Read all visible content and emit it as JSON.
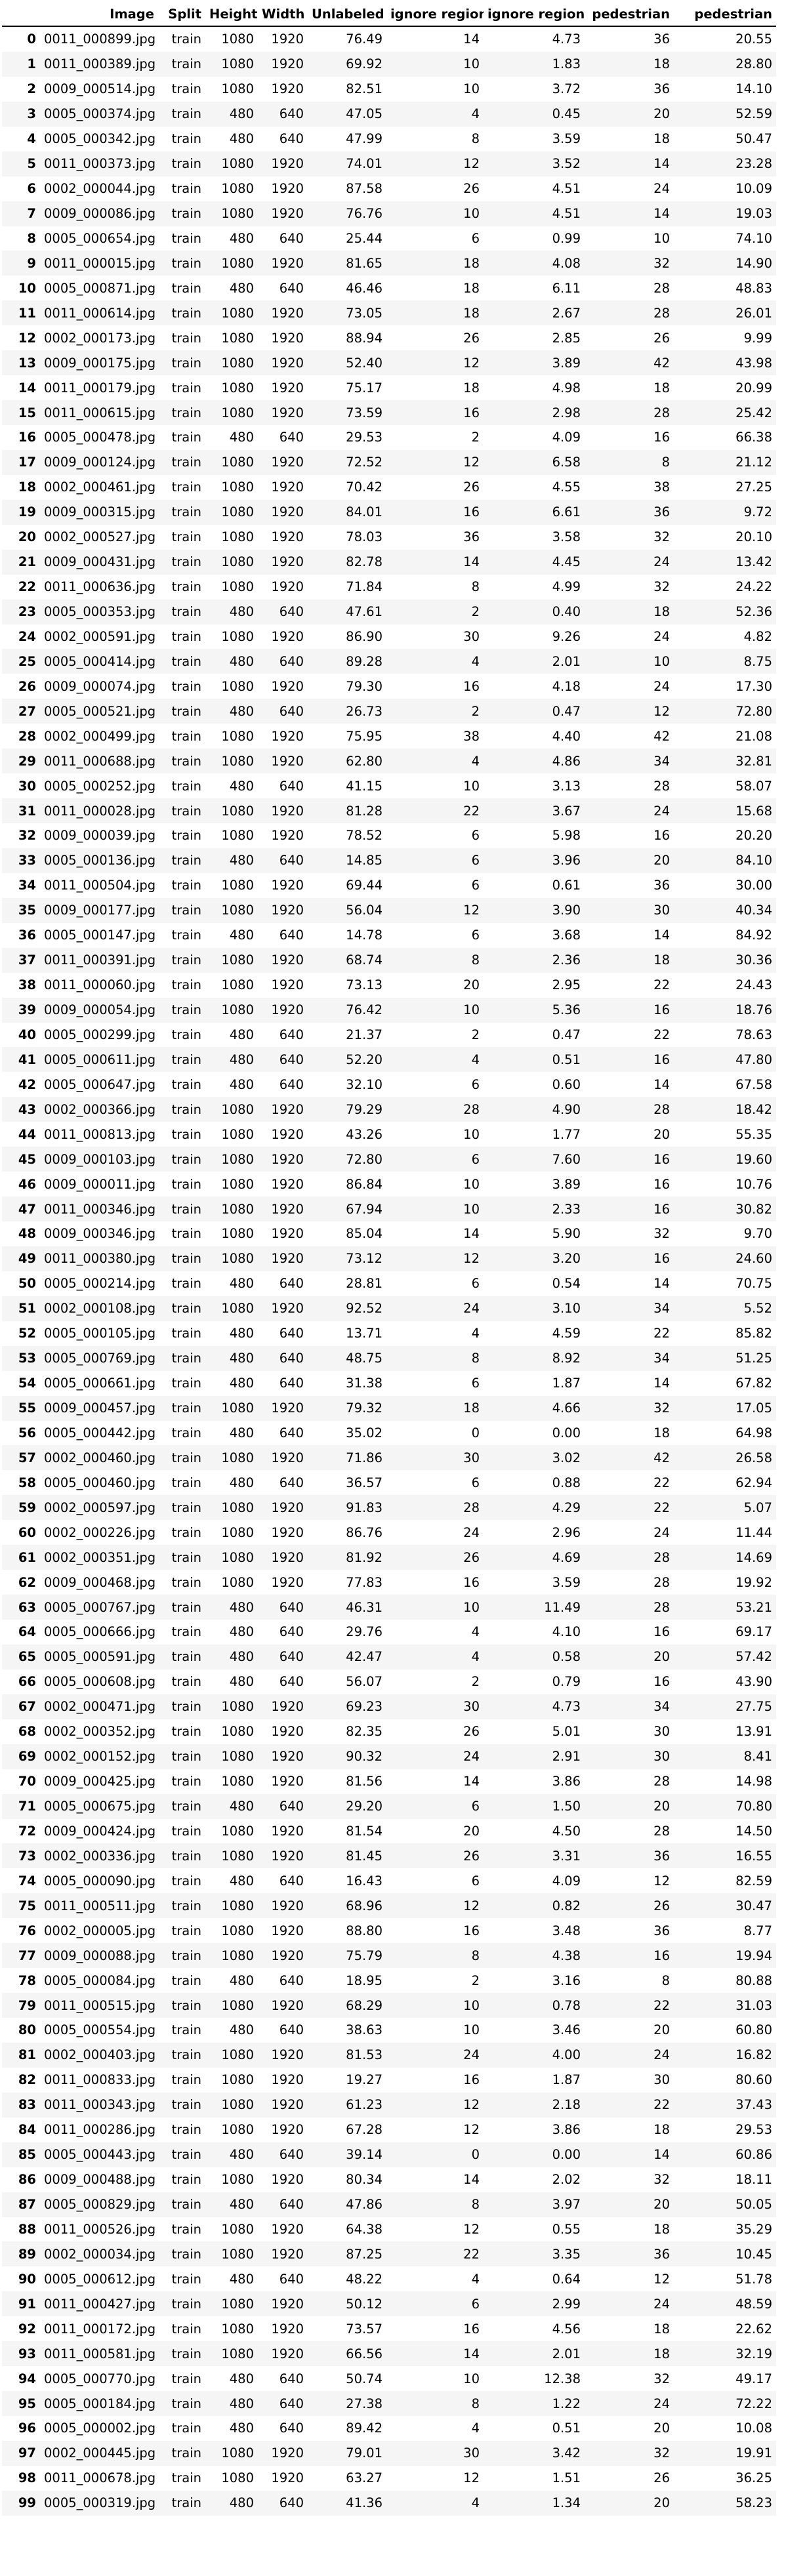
{
  "table": {
    "columns": [
      "",
      "Image",
      "Split",
      "Height",
      "Width",
      "Unlabeled",
      "ignore region",
      "ignore region",
      "pedestrian",
      "pedestrian"
    ],
    "rows": [
      [
        "0",
        "0011_000899.jpg",
        "train",
        "1080",
        "1920",
        "76.49",
        "14",
        "4.73",
        "36",
        "20.55"
      ],
      [
        "1",
        "0011_000389.jpg",
        "train",
        "1080",
        "1920",
        "69.92",
        "10",
        "1.83",
        "18",
        "28.80"
      ],
      [
        "2",
        "0009_000514.jpg",
        "train",
        "1080",
        "1920",
        "82.51",
        "10",
        "3.72",
        "36",
        "14.10"
      ],
      [
        "3",
        "0005_000374.jpg",
        "train",
        "480",
        "640",
        "47.05",
        "4",
        "0.45",
        "20",
        "52.59"
      ],
      [
        "4",
        "0005_000342.jpg",
        "train",
        "480",
        "640",
        "47.99",
        "8",
        "3.59",
        "18",
        "50.47"
      ],
      [
        "5",
        "0011_000373.jpg",
        "train",
        "1080",
        "1920",
        "74.01",
        "12",
        "3.52",
        "14",
        "23.28"
      ],
      [
        "6",
        "0002_000044.jpg",
        "train",
        "1080",
        "1920",
        "87.58",
        "26",
        "4.51",
        "24",
        "10.09"
      ],
      [
        "7",
        "0009_000086.jpg",
        "train",
        "1080",
        "1920",
        "76.76",
        "10",
        "4.51",
        "14",
        "19.03"
      ],
      [
        "8",
        "0005_000654.jpg",
        "train",
        "480",
        "640",
        "25.44",
        "6",
        "0.99",
        "10",
        "74.10"
      ],
      [
        "9",
        "0011_000015.jpg",
        "train",
        "1080",
        "1920",
        "81.65",
        "18",
        "4.08",
        "32",
        "14.90"
      ],
      [
        "10",
        "0005_000871.jpg",
        "train",
        "480",
        "640",
        "46.46",
        "18",
        "6.11",
        "28",
        "48.83"
      ],
      [
        "11",
        "0011_000614.jpg",
        "train",
        "1080",
        "1920",
        "73.05",
        "18",
        "2.67",
        "28",
        "26.01"
      ],
      [
        "12",
        "0002_000173.jpg",
        "train",
        "1080",
        "1920",
        "88.94",
        "26",
        "2.85",
        "26",
        "9.99"
      ],
      [
        "13",
        "0009_000175.jpg",
        "train",
        "1080",
        "1920",
        "52.40",
        "12",
        "3.89",
        "42",
        "43.98"
      ],
      [
        "14",
        "0011_000179.jpg",
        "train",
        "1080",
        "1920",
        "75.17",
        "18",
        "4.98",
        "18",
        "20.99"
      ],
      [
        "15",
        "0011_000615.jpg",
        "train",
        "1080",
        "1920",
        "73.59",
        "16",
        "2.98",
        "28",
        "25.42"
      ],
      [
        "16",
        "0005_000478.jpg",
        "train",
        "480",
        "640",
        "29.53",
        "2",
        "4.09",
        "16",
        "66.38"
      ],
      [
        "17",
        "0009_000124.jpg",
        "train",
        "1080",
        "1920",
        "72.52",
        "12",
        "6.58",
        "8",
        "21.12"
      ],
      [
        "18",
        "0002_000461.jpg",
        "train",
        "1080",
        "1920",
        "70.42",
        "26",
        "4.55",
        "38",
        "27.25"
      ],
      [
        "19",
        "0009_000315.jpg",
        "train",
        "1080",
        "1920",
        "84.01",
        "16",
        "6.61",
        "36",
        "9.72"
      ],
      [
        "20",
        "0002_000527.jpg",
        "train",
        "1080",
        "1920",
        "78.03",
        "36",
        "3.58",
        "32",
        "20.10"
      ],
      [
        "21",
        "0009_000431.jpg",
        "train",
        "1080",
        "1920",
        "82.78",
        "14",
        "4.45",
        "24",
        "13.42"
      ],
      [
        "22",
        "0011_000636.jpg",
        "train",
        "1080",
        "1920",
        "71.84",
        "8",
        "4.99",
        "32",
        "24.22"
      ],
      [
        "23",
        "0005_000353.jpg",
        "train",
        "480",
        "640",
        "47.61",
        "2",
        "0.40",
        "18",
        "52.36"
      ],
      [
        "24",
        "0002_000591.jpg",
        "train",
        "1080",
        "1920",
        "86.90",
        "30",
        "9.26",
        "24",
        "4.82"
      ],
      [
        "25",
        "0005_000414.jpg",
        "train",
        "480",
        "640",
        "89.28",
        "4",
        "2.01",
        "10",
        "8.75"
      ],
      [
        "26",
        "0009_000074.jpg",
        "train",
        "1080",
        "1920",
        "79.30",
        "16",
        "4.18",
        "24",
        "17.30"
      ],
      [
        "27",
        "0005_000521.jpg",
        "train",
        "480",
        "640",
        "26.73",
        "2",
        "0.47",
        "12",
        "72.80"
      ],
      [
        "28",
        "0002_000499.jpg",
        "train",
        "1080",
        "1920",
        "75.95",
        "38",
        "4.40",
        "42",
        "21.08"
      ],
      [
        "29",
        "0011_000688.jpg",
        "train",
        "1080",
        "1920",
        "62.80",
        "4",
        "4.86",
        "34",
        "32.81"
      ],
      [
        "30",
        "0005_000252.jpg",
        "train",
        "480",
        "640",
        "41.15",
        "10",
        "3.13",
        "28",
        "58.07"
      ],
      [
        "31",
        "0011_000028.jpg",
        "train",
        "1080",
        "1920",
        "81.28",
        "22",
        "3.67",
        "24",
        "15.68"
      ],
      [
        "32",
        "0009_000039.jpg",
        "train",
        "1080",
        "1920",
        "78.52",
        "6",
        "5.98",
        "16",
        "20.20"
      ],
      [
        "33",
        "0005_000136.jpg",
        "train",
        "480",
        "640",
        "14.85",
        "6",
        "3.96",
        "20",
        "84.10"
      ],
      [
        "34",
        "0011_000504.jpg",
        "train",
        "1080",
        "1920",
        "69.44",
        "6",
        "0.61",
        "36",
        "30.00"
      ],
      [
        "35",
        "0009_000177.jpg",
        "train",
        "1080",
        "1920",
        "56.04",
        "12",
        "3.90",
        "30",
        "40.34"
      ],
      [
        "36",
        "0005_000147.jpg",
        "train",
        "480",
        "640",
        "14.78",
        "6",
        "3.68",
        "14",
        "84.92"
      ],
      [
        "37",
        "0011_000391.jpg",
        "train",
        "1080",
        "1920",
        "68.74",
        "8",
        "2.36",
        "18",
        "30.36"
      ],
      [
        "38",
        "0011_000060.jpg",
        "train",
        "1080",
        "1920",
        "73.13",
        "20",
        "2.95",
        "22",
        "24.43"
      ],
      [
        "39",
        "0009_000054.jpg",
        "train",
        "1080",
        "1920",
        "76.42",
        "10",
        "5.36",
        "16",
        "18.76"
      ],
      [
        "40",
        "0005_000299.jpg",
        "train",
        "480",
        "640",
        "21.37",
        "2",
        "0.47",
        "22",
        "78.63"
      ],
      [
        "41",
        "0005_000611.jpg",
        "train",
        "480",
        "640",
        "52.20",
        "4",
        "0.51",
        "16",
        "47.80"
      ],
      [
        "42",
        "0005_000647.jpg",
        "train",
        "480",
        "640",
        "32.10",
        "6",
        "0.60",
        "14",
        "67.58"
      ],
      [
        "43",
        "0002_000366.jpg",
        "train",
        "1080",
        "1920",
        "79.29",
        "28",
        "4.90",
        "28",
        "18.42"
      ],
      [
        "44",
        "0011_000813.jpg",
        "train",
        "1080",
        "1920",
        "43.26",
        "10",
        "1.77",
        "20",
        "55.35"
      ],
      [
        "45",
        "0009_000103.jpg",
        "train",
        "1080",
        "1920",
        "72.80",
        "6",
        "7.60",
        "16",
        "19.60"
      ],
      [
        "46",
        "0009_000011.jpg",
        "train",
        "1080",
        "1920",
        "86.84",
        "10",
        "3.89",
        "16",
        "10.76"
      ],
      [
        "47",
        "0011_000346.jpg",
        "train",
        "1080",
        "1920",
        "67.94",
        "10",
        "2.33",
        "16",
        "30.82"
      ],
      [
        "48",
        "0009_000346.jpg",
        "train",
        "1080",
        "1920",
        "85.04",
        "14",
        "5.90",
        "32",
        "9.70"
      ],
      [
        "49",
        "0011_000380.jpg",
        "train",
        "1080",
        "1920",
        "73.12",
        "12",
        "3.20",
        "16",
        "24.60"
      ],
      [
        "50",
        "0005_000214.jpg",
        "train",
        "480",
        "640",
        "28.81",
        "6",
        "0.54",
        "14",
        "70.75"
      ],
      [
        "51",
        "0002_000108.jpg",
        "train",
        "1080",
        "1920",
        "92.52",
        "24",
        "3.10",
        "34",
        "5.52"
      ],
      [
        "52",
        "0005_000105.jpg",
        "train",
        "480",
        "640",
        "13.71",
        "4",
        "4.59",
        "22",
        "85.82"
      ],
      [
        "53",
        "0005_000769.jpg",
        "train",
        "480",
        "640",
        "48.75",
        "8",
        "8.92",
        "34",
        "51.25"
      ],
      [
        "54",
        "0005_000661.jpg",
        "train",
        "480",
        "640",
        "31.38",
        "6",
        "1.87",
        "14",
        "67.82"
      ],
      [
        "55",
        "0009_000457.jpg",
        "train",
        "1080",
        "1920",
        "79.32",
        "18",
        "4.66",
        "32",
        "17.05"
      ],
      [
        "56",
        "0005_000442.jpg",
        "train",
        "480",
        "640",
        "35.02",
        "0",
        "0.00",
        "18",
        "64.98"
      ],
      [
        "57",
        "0002_000460.jpg",
        "train",
        "1080",
        "1920",
        "71.86",
        "30",
        "3.02",
        "42",
        "26.58"
      ],
      [
        "58",
        "0005_000460.jpg",
        "train",
        "480",
        "640",
        "36.57",
        "6",
        "0.88",
        "22",
        "62.94"
      ],
      [
        "59",
        "0002_000597.jpg",
        "train",
        "1080",
        "1920",
        "91.83",
        "28",
        "4.29",
        "22",
        "5.07"
      ],
      [
        "60",
        "0002_000226.jpg",
        "train",
        "1080",
        "1920",
        "86.76",
        "24",
        "2.96",
        "24",
        "11.44"
      ],
      [
        "61",
        "0002_000351.jpg",
        "train",
        "1080",
        "1920",
        "81.92",
        "26",
        "4.69",
        "28",
        "14.69"
      ],
      [
        "62",
        "0009_000468.jpg",
        "train",
        "1080",
        "1920",
        "77.83",
        "16",
        "3.59",
        "28",
        "19.92"
      ],
      [
        "63",
        "0005_000767.jpg",
        "train",
        "480",
        "640",
        "46.31",
        "10",
        "11.49",
        "28",
        "53.21"
      ],
      [
        "64",
        "0005_000666.jpg",
        "train",
        "480",
        "640",
        "29.76",
        "4",
        "4.10",
        "16",
        "69.17"
      ],
      [
        "65",
        "0005_000591.jpg",
        "train",
        "480",
        "640",
        "42.47",
        "4",
        "0.58",
        "20",
        "57.42"
      ],
      [
        "66",
        "0005_000608.jpg",
        "train",
        "480",
        "640",
        "56.07",
        "2",
        "0.79",
        "16",
        "43.90"
      ],
      [
        "67",
        "0002_000471.jpg",
        "train",
        "1080",
        "1920",
        "69.23",
        "30",
        "4.73",
        "34",
        "27.75"
      ],
      [
        "68",
        "0002_000352.jpg",
        "train",
        "1080",
        "1920",
        "82.35",
        "26",
        "5.01",
        "30",
        "13.91"
      ],
      [
        "69",
        "0002_000152.jpg",
        "train",
        "1080",
        "1920",
        "90.32",
        "24",
        "2.91",
        "30",
        "8.41"
      ],
      [
        "70",
        "0009_000425.jpg",
        "train",
        "1080",
        "1920",
        "81.56",
        "14",
        "3.86",
        "28",
        "14.98"
      ],
      [
        "71",
        "0005_000675.jpg",
        "train",
        "480",
        "640",
        "29.20",
        "6",
        "1.50",
        "20",
        "70.80"
      ],
      [
        "72",
        "0009_000424.jpg",
        "train",
        "1080",
        "1920",
        "81.54",
        "20",
        "4.50",
        "28",
        "14.50"
      ],
      [
        "73",
        "0002_000336.jpg",
        "train",
        "1080",
        "1920",
        "81.45",
        "26",
        "3.31",
        "36",
        "16.55"
      ],
      [
        "74",
        "0005_000090.jpg",
        "train",
        "480",
        "640",
        "16.43",
        "6",
        "4.09",
        "12",
        "82.59"
      ],
      [
        "75",
        "0011_000511.jpg",
        "train",
        "1080",
        "1920",
        "68.96",
        "12",
        "0.82",
        "26",
        "30.47"
      ],
      [
        "76",
        "0002_000005.jpg",
        "train",
        "1080",
        "1920",
        "88.80",
        "16",
        "3.48",
        "36",
        "8.77"
      ],
      [
        "77",
        "0009_000088.jpg",
        "train",
        "1080",
        "1920",
        "75.79",
        "8",
        "4.38",
        "16",
        "19.94"
      ],
      [
        "78",
        "0005_000084.jpg",
        "train",
        "480",
        "640",
        "18.95",
        "2",
        "3.16",
        "8",
        "80.88"
      ],
      [
        "79",
        "0011_000515.jpg",
        "train",
        "1080",
        "1920",
        "68.29",
        "10",
        "0.78",
        "22",
        "31.03"
      ],
      [
        "80",
        "0005_000554.jpg",
        "train",
        "480",
        "640",
        "38.63",
        "10",
        "3.46",
        "20",
        "60.80"
      ],
      [
        "81",
        "0002_000403.jpg",
        "train",
        "1080",
        "1920",
        "81.53",
        "24",
        "4.00",
        "24",
        "16.82"
      ],
      [
        "82",
        "0011_000833.jpg",
        "train",
        "1080",
        "1920",
        "19.27",
        "16",
        "1.87",
        "30",
        "80.60"
      ],
      [
        "83",
        "0011_000343.jpg",
        "train",
        "1080",
        "1920",
        "61.23",
        "12",
        "2.18",
        "22",
        "37.43"
      ],
      [
        "84",
        "0011_000286.jpg",
        "train",
        "1080",
        "1920",
        "67.28",
        "12",
        "3.86",
        "18",
        "29.53"
      ],
      [
        "85",
        "0005_000443.jpg",
        "train",
        "480",
        "640",
        "39.14",
        "0",
        "0.00",
        "14",
        "60.86"
      ],
      [
        "86",
        "0009_000488.jpg",
        "train",
        "1080",
        "1920",
        "80.34",
        "14",
        "2.02",
        "32",
        "18.11"
      ],
      [
        "87",
        "0005_000829.jpg",
        "train",
        "480",
        "640",
        "47.86",
        "8",
        "3.97",
        "20",
        "50.05"
      ],
      [
        "88",
        "0011_000526.jpg",
        "train",
        "1080",
        "1920",
        "64.38",
        "12",
        "0.55",
        "18",
        "35.29"
      ],
      [
        "89",
        "0002_000034.jpg",
        "train",
        "1080",
        "1920",
        "87.25",
        "22",
        "3.35",
        "36",
        "10.45"
      ],
      [
        "90",
        "0005_000612.jpg",
        "train",
        "480",
        "640",
        "48.22",
        "4",
        "0.64",
        "12",
        "51.78"
      ],
      [
        "91",
        "0011_000427.jpg",
        "train",
        "1080",
        "1920",
        "50.12",
        "6",
        "2.99",
        "24",
        "48.59"
      ],
      [
        "92",
        "0011_000172.jpg",
        "train",
        "1080",
        "1920",
        "73.57",
        "16",
        "4.56",
        "18",
        "22.62"
      ],
      [
        "93",
        "0011_000581.jpg",
        "train",
        "1080",
        "1920",
        "66.56",
        "14",
        "2.01",
        "18",
        "32.19"
      ],
      [
        "94",
        "0005_000770.jpg",
        "train",
        "480",
        "640",
        "50.74",
        "10",
        "12.38",
        "32",
        "49.17"
      ],
      [
        "95",
        "0005_000184.jpg",
        "train",
        "480",
        "640",
        "27.38",
        "8",
        "1.22",
        "24",
        "72.22"
      ],
      [
        "96",
        "0005_000002.jpg",
        "train",
        "480",
        "640",
        "89.42",
        "4",
        "0.51",
        "20",
        "10.08"
      ],
      [
        "97",
        "0002_000445.jpg",
        "train",
        "1080",
        "1920",
        "79.01",
        "30",
        "3.42",
        "32",
        "19.91"
      ],
      [
        "98",
        "0011_000678.jpg",
        "train",
        "1080",
        "1920",
        "63.27",
        "12",
        "1.51",
        "26",
        "36.25"
      ],
      [
        "99",
        "0005_000319.jpg",
        "train",
        "480",
        "640",
        "41.36",
        "4",
        "1.34",
        "20",
        "58.23"
      ]
    ]
  }
}
